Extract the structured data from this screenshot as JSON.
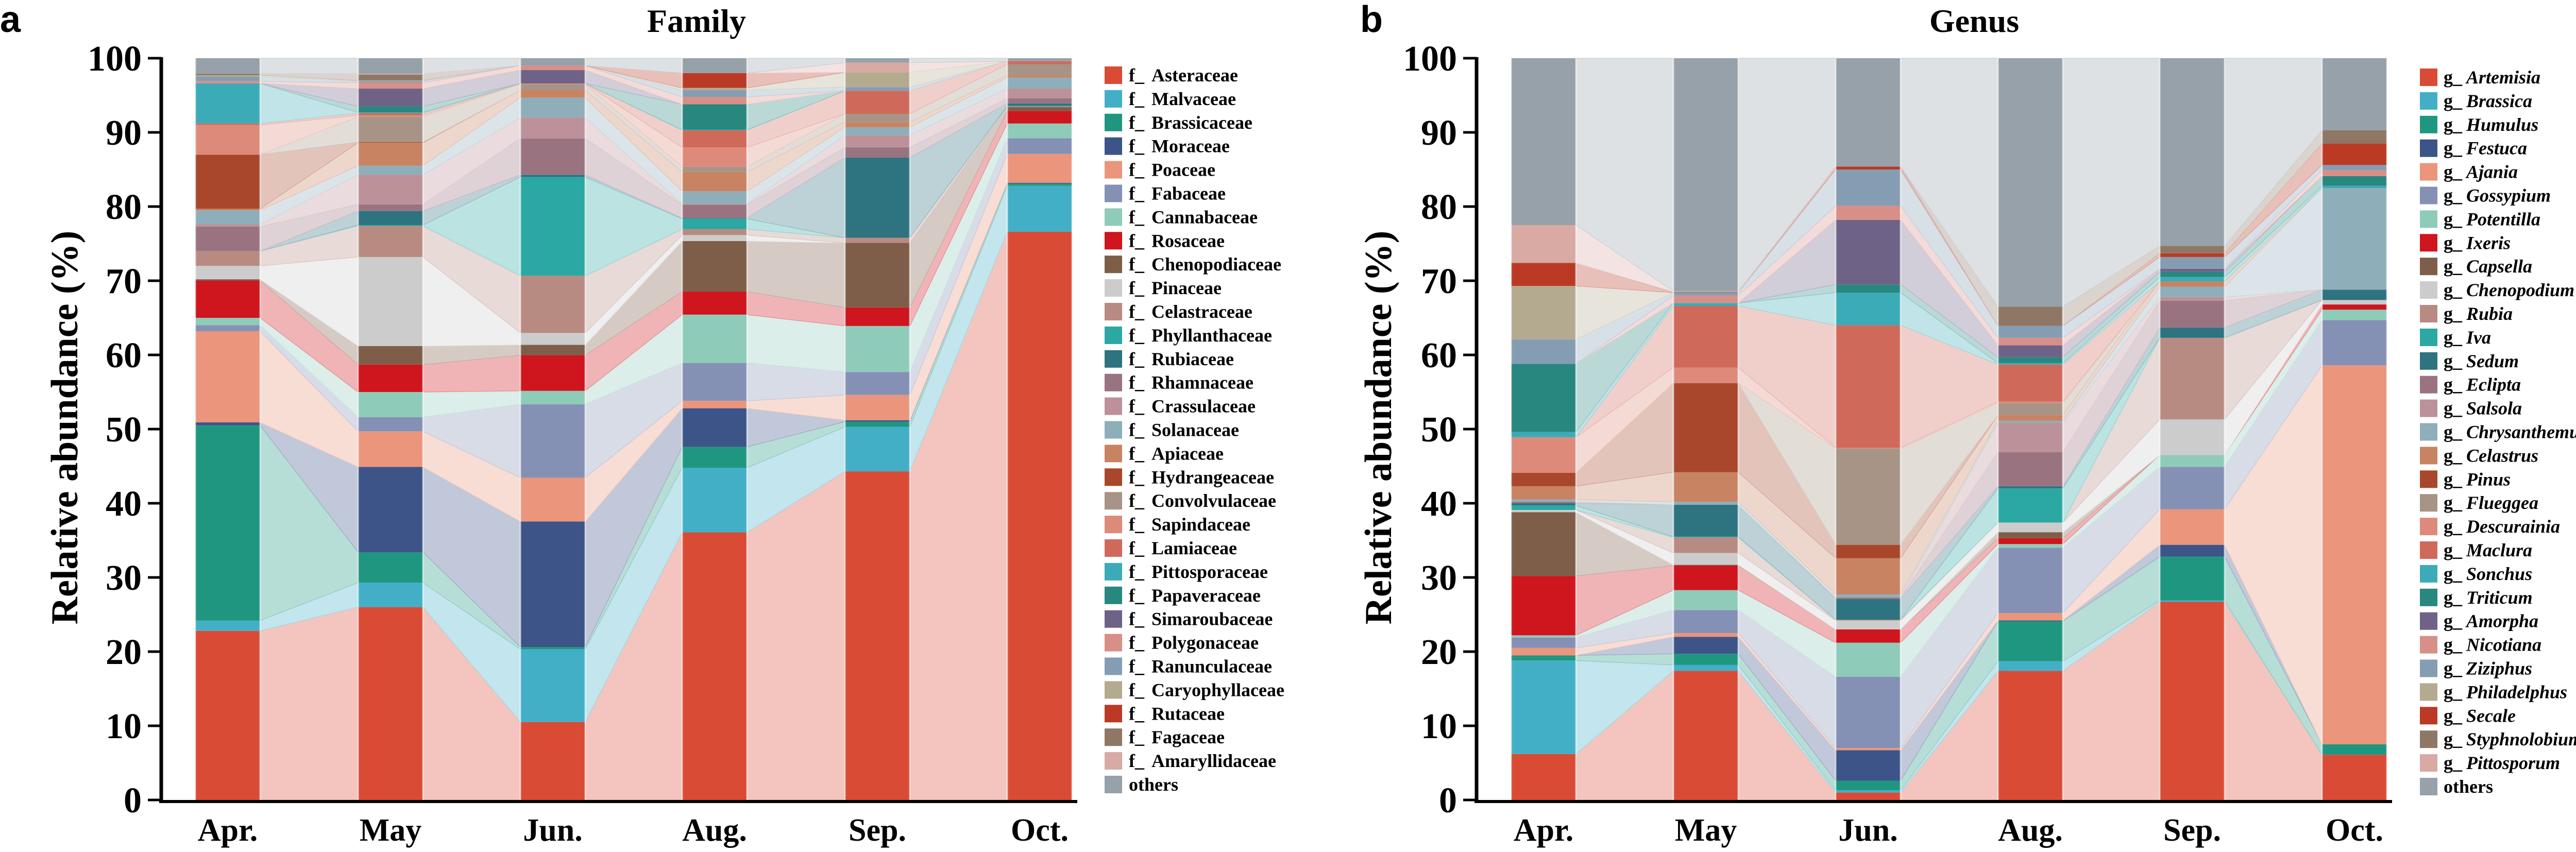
{
  "colors": [
    "#D94B35",
    "#42AFC7",
    "#1F9780",
    "#3C5488",
    "#EA957C",
    "#8491B4",
    "#8FCBB9",
    "#CF151D",
    "#7E5E48",
    "#CCCCCC",
    "#B88B82",
    "#2BA8A3",
    "#2E7380",
    "#9A7381",
    "#BC9199",
    "#8EAEB9",
    "#C88362",
    "#A8472B",
    "#A79486",
    "#DE8A7B",
    "#CF6A5A",
    "#3BABB7",
    "#28877F",
    "#6F6287",
    "#D88F87",
    "#859DB3",
    "#B4AA8F",
    "#BB3A25",
    "#8F7766",
    "#D9A9A3",
    "#96A1A9"
  ],
  "chart_data": [
    {
      "type": "bar",
      "subtype": "stacked-100-alluvial",
      "panel_label": "a",
      "title": "Family",
      "xlabel": "",
      "ylabel": "Relative abundance (%)",
      "ylim": [
        0,
        100
      ],
      "yticks": [
        "0",
        "10",
        "20",
        "30",
        "40",
        "50",
        "60",
        "70",
        "80",
        "90",
        "100"
      ],
      "categories": [
        "Apr.",
        "May",
        "Jun.",
        "Aug.",
        "Sep.",
        "Oct."
      ],
      "legend_position": "right",
      "legend_prefix": "f_",
      "series": [
        {
          "name": "Asteraceae",
          "values": [
            22.8,
            26.0,
            10.5,
            36.0,
            44.3,
            76.6
          ]
        },
        {
          "name": "Malvaceae",
          "values": [
            1.4,
            3.3,
            9.8,
            8.7,
            6.0,
            6.2
          ]
        },
        {
          "name": "Brassicaceae",
          "values": [
            26.3,
            4.1,
            0.3,
            2.8,
            0.7,
            0.3
          ]
        },
        {
          "name": "Moraceae",
          "values": [
            0.4,
            11.5,
            16.9,
            5.2,
            0.2,
            0.1
          ]
        },
        {
          "name": "Poaceae",
          "values": [
            12.3,
            4.8,
            5.9,
            1.0,
            3.4,
            3.9
          ]
        },
        {
          "name": "Fabaceae",
          "values": [
            0.8,
            1.9,
            9.9,
            5.1,
            3.1,
            2.1
          ]
        },
        {
          "name": "Cannabaceae",
          "values": [
            1.0,
            3.4,
            1.8,
            6.5,
            6.2,
            2.0
          ]
        },
        {
          "name": "Rosaceae",
          "values": [
            5.0,
            3.7,
            4.8,
            3.1,
            2.5,
            1.7
          ]
        },
        {
          "name": "Chenopodiaceae",
          "values": [
            0.2,
            2.5,
            1.4,
            6.8,
            8.7,
            0.5
          ]
        },
        {
          "name": "Pinaceae",
          "values": [
            1.8,
            12.0,
            1.6,
            0.8,
            0.0,
            0.0
          ]
        },
        {
          "name": "Celastraceae",
          "values": [
            2.0,
            4.2,
            7.7,
            0.8,
            0.7,
            0.1
          ]
        },
        {
          "name": "Phyllanthaceae",
          "values": [
            0.0,
            0.1,
            13.3,
            1.4,
            0.0,
            0.1
          ]
        },
        {
          "name": "Rubiaceae",
          "values": [
            0.0,
            1.9,
            0.3,
            0.1,
            10.8,
            0.3
          ]
        },
        {
          "name": "Rhamnaceae",
          "values": [
            3.3,
            0.9,
            4.9,
            1.8,
            1.4,
            0.7
          ]
        },
        {
          "name": "Crassulaceae",
          "values": [
            0.3,
            4.0,
            2.8,
            0.1,
            1.6,
            1.3
          ]
        },
        {
          "name": "Solanaceae",
          "values": [
            1.9,
            1.2,
            2.7,
            1.7,
            1.1,
            1.5
          ]
        },
        {
          "name": "Apiaceae",
          "values": [
            0.2,
            3.1,
            1.0,
            2.6,
            0.7,
            0.3
          ]
        },
        {
          "name": "Hydrangeaceae",
          "values": [
            7.3,
            0.1,
            0.0,
            0.0,
            0.0,
            0.0
          ]
        },
        {
          "name": "Convolvulaceae",
          "values": [
            0.0,
            3.4,
            0.8,
            0.7,
            1.1,
            1.5
          ]
        },
        {
          "name": "Sapindaceae",
          "values": [
            4.0,
            0.2,
            0.1,
            2.6,
            0.0,
            0.0
          ]
        },
        {
          "name": "Lamiaceae",
          "values": [
            0.2,
            0.3,
            0.0,
            2.3,
            3.1,
            0.4
          ]
        },
        {
          "name": "Pittosporaceae",
          "values": [
            5.4,
            0.1,
            0.0,
            0.1,
            0.0,
            0.0
          ]
        },
        {
          "name": "Papaveraceae",
          "values": [
            0.0,
            0.8,
            0.0,
            3.4,
            0.0,
            0.0
          ]
        },
        {
          "name": "Simaroubaceae",
          "values": [
            0.0,
            2.4,
            1.8,
            0.0,
            0.0,
            0.0
          ]
        },
        {
          "name": "Polygonaceae",
          "values": [
            0.3,
            0.8,
            0.6,
            1.0,
            0.0,
            0.0
          ]
        },
        {
          "name": "Ranunculaceae",
          "values": [
            0.6,
            0.2,
            0.0,
            0.9,
            0.5,
            0.0
          ]
        },
        {
          "name": "Caryophyllaceae",
          "values": [
            0.2,
            0.1,
            0.0,
            0.3,
            2.0,
            0.0
          ]
        },
        {
          "name": "Rutaceae",
          "values": [
            0.0,
            0.0,
            0.0,
            2.0,
            0.0,
            0.0
          ]
        },
        {
          "name": "Fagaceae",
          "values": [
            0.2,
            0.8,
            0.0,
            0.0,
            0.0,
            0.0
          ]
        },
        {
          "name": "Amaryllidaceae",
          "values": [
            0.0,
            0.1,
            0.0,
            0.0,
            1.3,
            0.0
          ]
        },
        {
          "name": "others",
          "values": [
            2.1,
            2.1,
            1.0,
            2.0,
            0.6,
            0.4
          ]
        }
      ]
    },
    {
      "type": "bar",
      "subtype": "stacked-100-alluvial",
      "panel_label": "b",
      "title": "Genus",
      "xlabel": "",
      "ylabel": "Relative abundance (%)",
      "ylim": [
        0,
        100
      ],
      "yticks": [
        "0",
        "10",
        "20",
        "30",
        "40",
        "50",
        "60",
        "70",
        "80",
        "90",
        "100"
      ],
      "categories": [
        "Apr.",
        "May",
        "Jun.",
        "Aug.",
        "Sep.",
        "Oct."
      ],
      "legend_position": "right",
      "legend_prefix": "g_",
      "series": [
        {
          "name": "Artemisia",
          "values": [
            6.2,
            17.4,
            1.0,
            17.4,
            26.7,
            6.1
          ]
        },
        {
          "name": "Brassica",
          "values": [
            12.6,
            0.8,
            0.3,
            1.3,
            0.2,
            0.0
          ]
        },
        {
          "name": "Humulus",
          "values": [
            0.7,
            1.5,
            1.3,
            5.4,
            5.9,
            1.4
          ]
        },
        {
          "name": "Festuca",
          "values": [
            0.0,
            2.3,
            4.1,
            0.1,
            1.6,
            0.0
          ]
        },
        {
          "name": "Ajania",
          "values": [
            1.0,
            0.5,
            0.3,
            1.0,
            4.8,
            51.1
          ]
        },
        {
          "name": "Gossypium",
          "values": [
            1.4,
            3.1,
            9.6,
            8.8,
            5.7,
            6.1
          ]
        },
        {
          "name": "Potentilla",
          "values": [
            0.3,
            2.7,
            4.6,
            0.5,
            1.6,
            1.4
          ]
        },
        {
          "name": "Ixeris",
          "values": [
            8.0,
            3.3,
            1.8,
            0.8,
            0.0,
            0.7
          ]
        },
        {
          "name": "Capsella",
          "values": [
            8.6,
            0.1,
            0.0,
            0.8,
            0.0,
            0.0
          ]
        },
        {
          "name": "Chenopodium",
          "values": [
            0.3,
            1.6,
            1.2,
            1.3,
            4.8,
            0.6
          ]
        },
        {
          "name": "Rubia",
          "values": [
            0.0,
            2.1,
            0.1,
            0.0,
            11.0,
            0.0
          ]
        },
        {
          "name": "Iva",
          "values": [
            0.6,
            0.1,
            0.0,
            4.6,
            0.0,
            0.0
          ]
        },
        {
          "name": "Sedum",
          "values": [
            0.3,
            4.3,
            2.8,
            0.3,
            1.4,
            1.4
          ]
        },
        {
          "name": "Eclipta",
          "values": [
            0.2,
            0.0,
            0.2,
            4.6,
            3.6,
            0.0
          ]
        },
        {
          "name": "Salsola",
          "values": [
            0.0,
            0.0,
            0.0,
            3.9,
            0.5,
            0.0
          ]
        },
        {
          "name": "Chrysanthemum",
          "values": [
            0.3,
            0.4,
            0.4,
            0.3,
            1.4,
            13.7
          ]
        },
        {
          "name": "Celastrus",
          "values": [
            1.8,
            4.0,
            4.9,
            0.8,
            0.7,
            0.0
          ]
        },
        {
          "name": "Pinus",
          "values": [
            1.8,
            12.0,
            1.8,
            0.0,
            0.0,
            0.0
          ]
        },
        {
          "name": "Flueggea",
          "values": [
            0.0,
            0.0,
            13.0,
            1.6,
            0.0,
            0.0
          ]
        },
        {
          "name": "Descurainia",
          "values": [
            4.8,
            2.1,
            0.1,
            0.2,
            0.0,
            0.0
          ]
        },
        {
          "name": "Maclura",
          "values": [
            0.0,
            8.3,
            16.5,
            5.0,
            0.0,
            0.0
          ]
        },
        {
          "name": "Sonchus",
          "values": [
            0.7,
            0.4,
            4.4,
            0.2,
            0.6,
            0.3
          ]
        },
        {
          "name": "Triticum",
          "values": [
            9.2,
            0.0,
            1.1,
            0.8,
            0.7,
            1.3
          ]
        },
        {
          "name": "Amorpha",
          "values": [
            0.0,
            0.0,
            8.7,
            1.6,
            0.4,
            0.0
          ]
        },
        {
          "name": "Nicotiana",
          "values": [
            0.0,
            1.0,
            1.9,
            1.0,
            0.0,
            0.8
          ]
        },
        {
          "name": "Ziziphus",
          "values": [
            3.3,
            0.4,
            4.9,
            1.6,
            1.6,
            0.7
          ]
        },
        {
          "name": "Philadelphus",
          "values": [
            7.2,
            0.0,
            0.0,
            0.0,
            0.0,
            0.0
          ]
        },
        {
          "name": "Secale",
          "values": [
            3.1,
            0.0,
            0.4,
            0.0,
            0.5,
            2.9
          ]
        },
        {
          "name": "Styphnolobium",
          "values": [
            0.0,
            0.1,
            0.0,
            2.6,
            1.0,
            1.8
          ]
        },
        {
          "name": "Pittosporum",
          "values": [
            5.1,
            0.1,
            0.0,
            0.0,
            0.0,
            0.0
          ]
        },
        {
          "name": "others",
          "values": [
            22.5,
            31.4,
            14.6,
            33.5,
            25.3,
            9.7
          ]
        }
      ]
    }
  ]
}
